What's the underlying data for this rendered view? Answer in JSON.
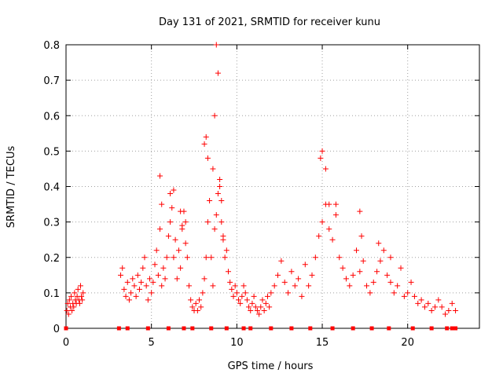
{
  "chart_data": {
    "type": "scatter",
    "title": "Day 131 of 2021, SRMTID for receiver kunu",
    "xlabel": "GPS time / hours",
    "ylabel": "SRMTID / TECUs",
    "xlim": [
      0,
      24.2
    ],
    "ylim": [
      0,
      0.8
    ],
    "x_ticks": [
      0,
      5,
      10,
      15,
      20
    ],
    "y_ticks": [
      0,
      0.1,
      0.2,
      0.3,
      0.4,
      0.5,
      0.6,
      0.7,
      0.8
    ],
    "grid": true,
    "color": "#ff0000",
    "series": [
      {
        "name": "SRMTID",
        "marker": "plus",
        "x": [
          0.05,
          0.1,
          0.15,
          0.2,
          0.25,
          0.3,
          0.35,
          0.4,
          0.45,
          0.5,
          0.55,
          0.6,
          0.65,
          0.7,
          0.75,
          0.8,
          0.85,
          0.9,
          0.95,
          1.0,
          3.2,
          3.3,
          3.4,
          3.5,
          3.6,
          3.7,
          3.8,
          3.9,
          4.0,
          4.1,
          4.2,
          4.3,
          4.4,
          4.5,
          4.6,
          4.7,
          4.8,
          4.9,
          5.0,
          5.1,
          5.2,
          5.3,
          5.4,
          5.5,
          5.6,
          5.7,
          5.8,
          5.9,
          6.0,
          6.1,
          6.2,
          6.3,
          6.4,
          6.5,
          6.6,
          6.7,
          6.8,
          6.9,
          7.0,
          7.1,
          7.2,
          7.3,
          7.4,
          7.5,
          7.6,
          7.7,
          7.8,
          7.9,
          8.0,
          8.1,
          8.2,
          8.3,
          8.4,
          8.5,
          8.6,
          8.7,
          8.8,
          8.9,
          9.0,
          9.1,
          9.2,
          9.3,
          9.4,
          9.5,
          9.6,
          9.7,
          9.8,
          9.9,
          10.0,
          10.1,
          10.2,
          10.3,
          10.4,
          10.5,
          10.6,
          10.7,
          10.8,
          10.9,
          11.0,
          11.1,
          11.2,
          11.3,
          11.4,
          11.5,
          11.6,
          11.7,
          11.8,
          11.9,
          12.0,
          12.2,
          12.4,
          12.6,
          12.8,
          13.0,
          13.2,
          13.4,
          13.6,
          13.8,
          14.0,
          14.2,
          14.4,
          14.6,
          14.8,
          15.0,
          15.2,
          15.4,
          15.6,
          15.8,
          16.0,
          16.2,
          16.4,
          16.6,
          16.8,
          17.0,
          17.2,
          17.4,
          17.6,
          17.8,
          18.0,
          18.2,
          18.4,
          18.6,
          18.8,
          19.0,
          19.2,
          19.4,
          19.6,
          19.8,
          20.0,
          20.2,
          20.4,
          20.6,
          20.8,
          21.0,
          21.2,
          21.4,
          21.6,
          21.8,
          22.0,
          22.2,
          22.4,
          22.6,
          22.8,
          5.5,
          5.6,
          6.1,
          6.3,
          6.7,
          6.8,
          7.0,
          8.1,
          8.2,
          8.3,
          8.6,
          8.7,
          8.8,
          8.9,
          9.0,
          9.1,
          9.2,
          14.9,
          15.0,
          15.2,
          15.4,
          15.8,
          17.2,
          17.3,
          18.3,
          19.0
        ],
        "y": [
          0.05,
          0.07,
          0.04,
          0.08,
          0.06,
          0.09,
          0.05,
          0.07,
          0.06,
          0.1,
          0.08,
          0.07,
          0.09,
          0.11,
          0.08,
          0.07,
          0.12,
          0.09,
          0.08,
          0.1,
          0.15,
          0.17,
          0.11,
          0.09,
          0.13,
          0.08,
          0.1,
          0.14,
          0.12,
          0.09,
          0.15,
          0.11,
          0.13,
          0.17,
          0.2,
          0.12,
          0.08,
          0.14,
          0.1,
          0.13,
          0.18,
          0.22,
          0.15,
          0.28,
          0.12,
          0.17,
          0.14,
          0.2,
          0.26,
          0.3,
          0.34,
          0.2,
          0.25,
          0.14,
          0.22,
          0.17,
          0.28,
          0.33,
          0.24,
          0.2,
          0.12,
          0.08,
          0.06,
          0.05,
          0.07,
          0.05,
          0.08,
          0.06,
          0.1,
          0.14,
          0.2,
          0.3,
          0.36,
          0.2,
          0.12,
          0.28,
          0.32,
          0.38,
          0.4,
          0.3,
          0.25,
          0.2,
          0.22,
          0.16,
          0.13,
          0.11,
          0.09,
          0.12,
          0.1,
          0.08,
          0.07,
          0.09,
          0.12,
          0.1,
          0.08,
          0.06,
          0.05,
          0.07,
          0.09,
          0.06,
          0.05,
          0.04,
          0.06,
          0.08,
          0.05,
          0.07,
          0.09,
          0.06,
          0.1,
          0.12,
          0.15,
          0.19,
          0.13,
          0.1,
          0.16,
          0.12,
          0.14,
          0.09,
          0.18,
          0.12,
          0.15,
          0.2,
          0.26,
          0.3,
          0.35,
          0.28,
          0.25,
          0.32,
          0.2,
          0.17,
          0.14,
          0.12,
          0.15,
          0.22,
          0.16,
          0.19,
          0.12,
          0.1,
          0.13,
          0.16,
          0.19,
          0.22,
          0.15,
          0.13,
          0.1,
          0.12,
          0.17,
          0.09,
          0.1,
          0.13,
          0.09,
          0.07,
          0.08,
          0.06,
          0.07,
          0.05,
          0.06,
          0.08,
          0.06,
          0.04,
          0.05,
          0.07,
          0.05,
          0.43,
          0.35,
          0.38,
          0.39,
          0.33,
          0.29,
          0.3,
          0.52,
          0.54,
          0.48,
          0.45,
          0.6,
          0.8,
          0.72,
          0.42,
          0.36,
          0.26,
          0.48,
          0.5,
          0.45,
          0.35,
          0.35,
          0.33,
          0.26,
          0.24,
          0.2
        ]
      }
    ],
    "ticks_at_zero": [
      0,
      3.1,
      3.6,
      4.8,
      6.0,
      6.9,
      7.4,
      8.5,
      9.4,
      10.4,
      10.8,
      12.0,
      13.2,
      14.3,
      15.6,
      16.8,
      17.9,
      18.9,
      20.3,
      21.4,
      22.3,
      22.6,
      22.8
    ]
  }
}
